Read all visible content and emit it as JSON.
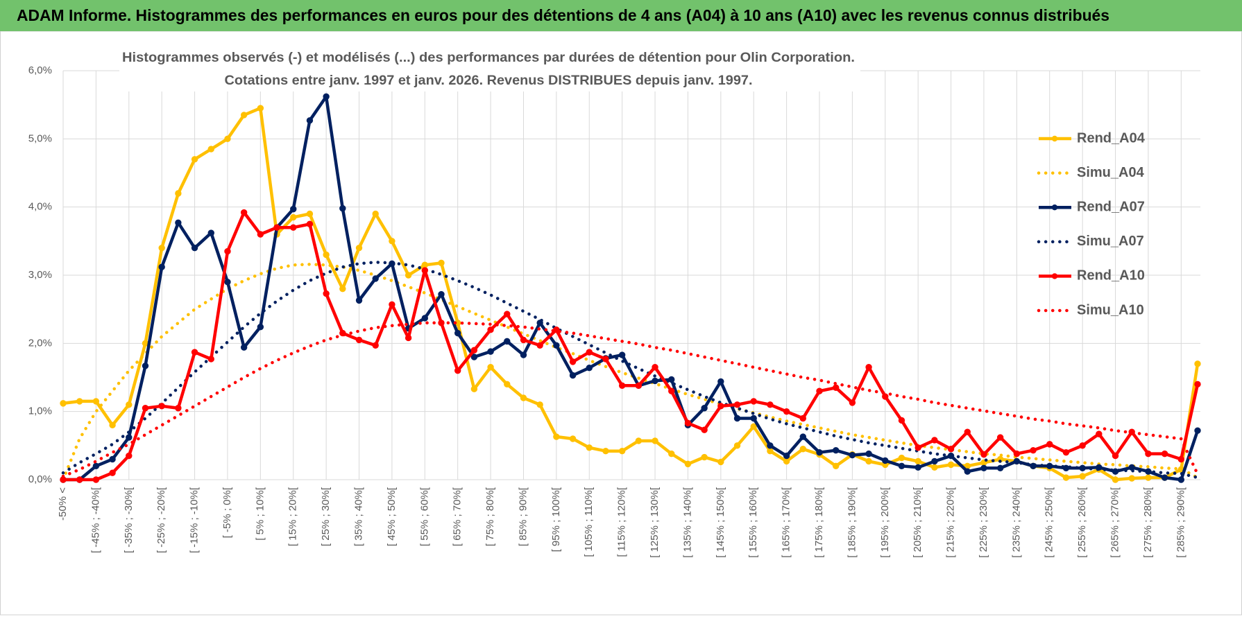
{
  "chart_data": {
    "type": "line",
    "title": "ADAM Informe. Histogrammes des performances en euros pour des détentions de 4 ans (A04) à 10 ans (A10) avec les revenus connus distribués",
    "subtitle": [
      "Histogrammes observés (-) et modélisés (...) des performances par durées de détention pour Olin Corporation.",
      "Cotations entre janv. 1997 et janv. 2026. Revenus DISTRIBUES depuis janv. 1997."
    ],
    "categories": [
      "-50% <",
      null,
      "[ -45% ; -40%[",
      null,
      "[ -35% ; -30%[",
      null,
      "[ -25% ; -20%[",
      null,
      "[ -15% ; -10%[",
      null,
      "[ -5% ; 0%[",
      null,
      "[ 5% ; 10%[",
      null,
      "[ 15% ; 20%[",
      null,
      "[ 25% ; 30%[",
      null,
      "[ 35% ; 40%[",
      null,
      "[ 45% ; 50%[",
      null,
      "[ 55% ; 60%[",
      null,
      "[ 65% ; 70%[",
      null,
      "[ 75% ; 80%[",
      null,
      "[ 85% ; 90%[",
      null,
      "[ 95% ; 100%[",
      null,
      "[ 105% ; 110%[",
      null,
      "[ 115% ; 120%[",
      null,
      "[ 125% ; 130%[",
      null,
      "[ 135% ; 140%[",
      null,
      "[ 145% ; 150%[",
      null,
      "[ 155% ; 160%[",
      null,
      "[ 165% ; 170%[",
      null,
      "[ 175% ; 180%[",
      null,
      "[ 185% ; 190%[",
      null,
      "[ 195% ; 200%[",
      null,
      "[ 205% ; 210%[",
      null,
      "[ 215% ; 220%[",
      null,
      "[ 225% ; 230%[",
      null,
      "[ 235% ; 240%[",
      null,
      "[ 245% ; 250%[",
      null,
      "[ 255% ; 260%[",
      null,
      "[ 265% ; 270%[",
      null,
      "[ 275% ; 280%[",
      null,
      "[ 285% ; 290%[",
      null
    ],
    "series": [
      {
        "name": "Rend_A04",
        "color": "#ffc000",
        "style": "solid",
        "markers": true,
        "values": [
          1.12,
          1.15,
          1.15,
          0.8,
          1.1,
          2.0,
          3.4,
          4.2,
          4.7,
          4.85,
          5.0,
          5.35,
          5.45,
          3.6,
          3.85,
          3.9,
          3.3,
          2.8,
          3.4,
          3.9,
          3.5,
          3.0,
          3.15,
          3.18,
          2.3,
          1.33,
          1.65,
          1.4,
          1.2,
          1.1,
          0.63,
          0.6,
          0.47,
          0.42,
          0.42,
          0.57,
          0.57,
          0.38,
          0.23,
          0.33,
          0.26,
          0.5,
          0.78,
          0.42,
          0.27,
          0.45,
          0.37,
          0.2,
          0.37,
          0.27,
          0.22,
          0.32,
          0.27,
          0.18,
          0.22,
          0.2,
          0.25,
          0.3,
          0.27,
          0.2,
          0.17,
          0.03,
          0.05,
          0.15,
          0.0,
          0.02,
          0.03,
          0.03,
          0.15,
          1.7
        ]
      },
      {
        "name": "Simu_A04",
        "color": "#ffc000",
        "style": "dotted",
        "markers": false,
        "values": [
          0.0,
          0.6,
          1.0,
          1.3,
          1.6,
          1.85,
          2.1,
          2.3,
          2.5,
          2.65,
          2.8,
          2.92,
          3.02,
          3.1,
          3.15,
          3.16,
          3.15,
          3.12,
          3.07,
          3.0,
          2.92,
          2.83,
          2.74,
          2.64,
          2.54,
          2.44,
          2.34,
          2.24,
          2.14,
          2.04,
          1.94,
          1.85,
          1.75,
          1.66,
          1.57,
          1.49,
          1.41,
          1.33,
          1.25,
          1.18,
          1.11,
          1.04,
          0.98,
          0.92,
          0.86,
          0.81,
          0.76,
          0.71,
          0.66,
          0.62,
          0.58,
          0.54,
          0.5,
          0.47,
          0.44,
          0.41,
          0.38,
          0.36,
          0.33,
          0.31,
          0.29,
          0.27,
          0.25,
          0.23,
          0.22,
          0.2,
          0.19,
          0.17,
          0.16,
          0.03
        ]
      },
      {
        "name": "Rend_A07",
        "color": "#002060",
        "style": "solid",
        "markers": true,
        "values": [
          0.0,
          0.0,
          0.2,
          0.3,
          0.62,
          1.67,
          3.12,
          3.77,
          3.4,
          3.62,
          2.9,
          1.94,
          2.24,
          3.7,
          3.97,
          5.27,
          5.62,
          3.98,
          2.63,
          2.95,
          3.17,
          2.22,
          2.37,
          2.72,
          2.15,
          1.8,
          1.88,
          2.03,
          1.83,
          2.3,
          1.97,
          1.53,
          1.64,
          1.78,
          1.83,
          1.38,
          1.45,
          1.47,
          0.8,
          1.05,
          1.44,
          0.9,
          0.9,
          0.5,
          0.35,
          0.63,
          0.4,
          0.43,
          0.36,
          0.38,
          0.28,
          0.2,
          0.18,
          0.27,
          0.35,
          0.12,
          0.17,
          0.17,
          0.27,
          0.2,
          0.2,
          0.17,
          0.17,
          0.18,
          0.12,
          0.18,
          0.12,
          0.03,
          0.0,
          0.72
        ]
      },
      {
        "name": "Simu_A07",
        "color": "#002060",
        "style": "dotted",
        "markers": false,
        "values": [
          0.1,
          0.25,
          0.38,
          0.52,
          0.7,
          0.9,
          1.12,
          1.35,
          1.58,
          1.8,
          2.02,
          2.24,
          2.44,
          2.62,
          2.78,
          2.92,
          3.03,
          3.12,
          3.17,
          3.19,
          3.18,
          3.15,
          3.09,
          3.01,
          2.92,
          2.82,
          2.71,
          2.59,
          2.47,
          2.35,
          2.22,
          2.1,
          1.98,
          1.86,
          1.74,
          1.63,
          1.52,
          1.42,
          1.32,
          1.22,
          1.13,
          1.05,
          0.97,
          0.89,
          0.82,
          0.76,
          0.7,
          0.64,
          0.59,
          0.54,
          0.5,
          0.46,
          0.42,
          0.38,
          0.35,
          0.32,
          0.29,
          0.27,
          0.25,
          0.22,
          0.2,
          0.19,
          0.17,
          0.15,
          0.14,
          0.13,
          0.12,
          0.1,
          0.09,
          0.03
        ]
      },
      {
        "name": "Rend_A10",
        "color": "#ff0000",
        "style": "solid",
        "markers": true,
        "values": [
          0.0,
          0.0,
          0.0,
          0.1,
          0.35,
          1.05,
          1.08,
          1.05,
          1.87,
          1.77,
          3.35,
          3.92,
          3.6,
          3.7,
          3.7,
          3.75,
          2.73,
          2.15,
          2.05,
          1.97,
          2.57,
          2.08,
          3.07,
          2.3,
          1.6,
          1.9,
          2.2,
          2.43,
          2.05,
          1.97,
          2.2,
          1.73,
          1.87,
          1.77,
          1.38,
          1.38,
          1.65,
          1.3,
          0.83,
          0.73,
          1.08,
          1.1,
          1.15,
          1.1,
          1.0,
          0.9,
          1.3,
          1.35,
          1.13,
          1.65,
          1.22,
          0.87,
          0.47,
          0.58,
          0.45,
          0.7,
          0.37,
          0.62,
          0.38,
          0.43,
          0.52,
          0.4,
          0.5,
          0.67,
          0.35,
          0.7,
          0.38,
          0.38,
          0.3,
          1.4
        ]
      },
      {
        "name": "Simu_A10",
        "color": "#ff0000",
        "style": "dotted",
        "markers": false,
        "values": [
          0.05,
          0.15,
          0.27,
          0.4,
          0.52,
          0.66,
          0.8,
          0.94,
          1.08,
          1.22,
          1.36,
          1.5,
          1.63,
          1.75,
          1.86,
          1.96,
          2.05,
          2.12,
          2.18,
          2.23,
          2.26,
          2.28,
          2.3,
          2.3,
          2.3,
          2.29,
          2.28,
          2.26,
          2.24,
          2.21,
          2.18,
          2.15,
          2.11,
          2.07,
          2.03,
          1.99,
          1.94,
          1.9,
          1.85,
          1.8,
          1.75,
          1.7,
          1.65,
          1.6,
          1.55,
          1.5,
          1.46,
          1.41,
          1.36,
          1.31,
          1.27,
          1.22,
          1.18,
          1.13,
          1.09,
          1.05,
          1.01,
          0.97,
          0.93,
          0.89,
          0.86,
          0.82,
          0.79,
          0.76,
          0.72,
          0.69,
          0.66,
          0.63,
          0.6,
          0.08
        ]
      }
    ],
    "ylim": [
      0,
      6
    ],
    "yticks": [
      {
        "value": 0,
        "label": "0,0%"
      },
      {
        "value": 1,
        "label": "1,0%"
      },
      {
        "value": 2,
        "label": "2,0%"
      },
      {
        "value": 3,
        "label": "3,0%"
      },
      {
        "value": 4,
        "label": "4,0%"
      },
      {
        "value": 5,
        "label": "5,0%"
      },
      {
        "value": 6,
        "label": "6,0%"
      }
    ],
    "grid": true,
    "legend": "right"
  }
}
